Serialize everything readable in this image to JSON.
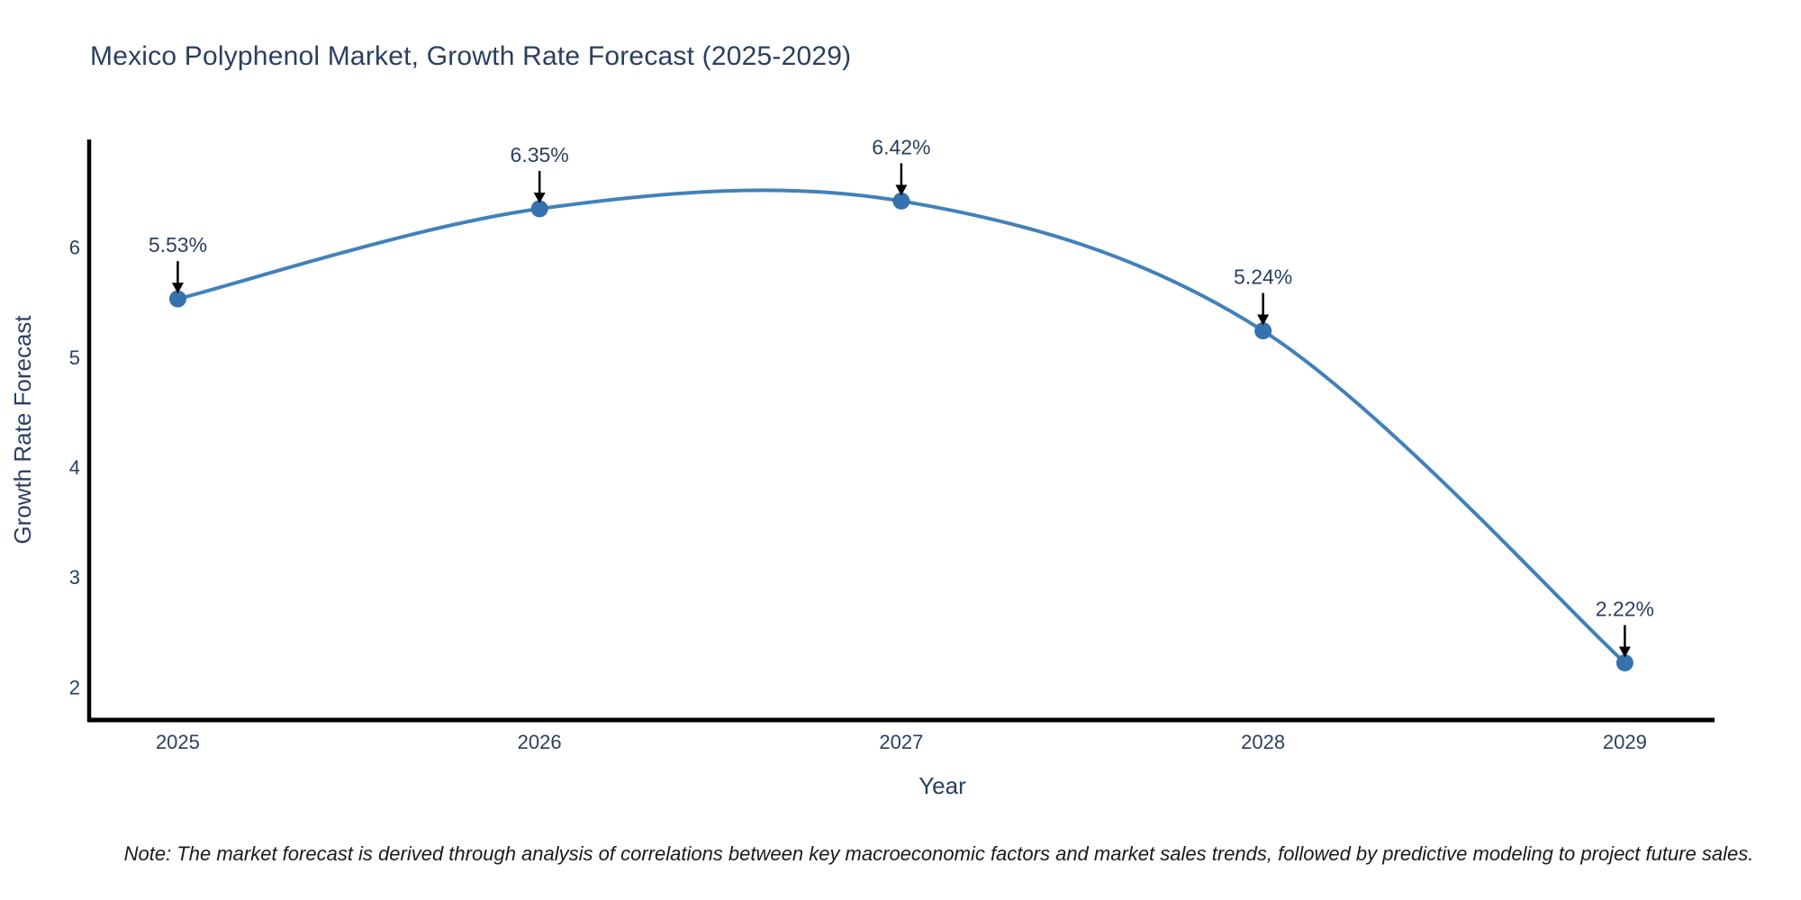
{
  "title": "Mexico Polyphenol Market, Growth Rate Forecast (2025-2029)",
  "note": {
    "text": "Note: The market forecast is derived through analysis of correlations between key macroeconomic factors and market sales trends, followed by predictive modeling to project future sales."
  },
  "chart_data": {
    "type": "line",
    "title": "Mexico Polyphenol Market, Growth Rate Forecast (2025-2029)",
    "xlabel": "Year",
    "ylabel": "Growth Rate Forecast",
    "x": [
      2025,
      2026,
      2027,
      2028,
      2029
    ],
    "y": [
      5.53,
      6.35,
      6.42,
      5.24,
      2.22
    ],
    "point_labels": [
      "5.53%",
      "6.35%",
      "6.42%",
      "5.24%",
      "2.22%"
    ],
    "xticks": [
      "2025",
      "2026",
      "2027",
      "2028",
      "2029"
    ],
    "yticks": [
      2,
      3,
      4,
      5,
      6
    ],
    "xlim": [
      2024.755,
      2029.248
    ],
    "ylim": [
      1.7,
      6.98
    ],
    "line_shape": "spline",
    "grid": false,
    "legend": false,
    "colors": {
      "line": "#4181bb",
      "marker": "#3572ae",
      "axis": "#000000",
      "tick_label": "#2a3f5f",
      "axis_title": "#2a3f5f",
      "annotation_text": "#2a3f5f",
      "annotation_arrow": "#000000"
    }
  }
}
